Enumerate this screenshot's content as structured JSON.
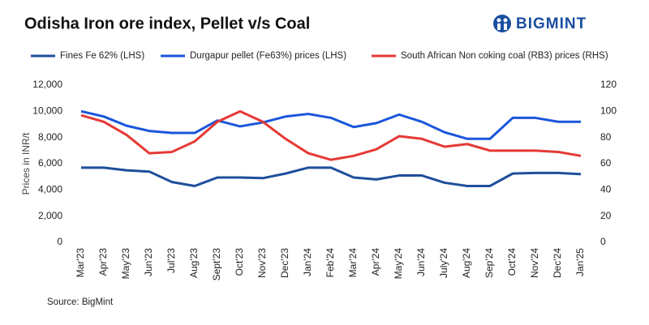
{
  "logo": "BIGMINT",
  "chart_data": {
    "type": "line",
    "title": "Odisha Iron ore index, Pellet v/s Coal",
    "ylabel": "Prices in INR/t",
    "source": "Source: BigMint",
    "categories": [
      "Mar'23",
      "Apr'23",
      "May'23",
      "Jun'23",
      "Jul'23",
      "Aug'23",
      "Sept'23",
      "Oct'23",
      "Nov'23",
      "Dec'23",
      "Jan'24",
      "Feb'24",
      "Mar'24",
      "Apr'24",
      "May'24",
      "Jun'24",
      "July'24",
      "Aug'24",
      "Sep'24",
      "Oct'24",
      "Nov'24",
      "Dec'24",
      "Jan'25"
    ],
    "series": [
      {
        "name": "Fines Fe 62% (LHS)",
        "color": "#1f4e9c",
        "values": [
          5700,
          5700,
          5500,
          5400,
          4600,
          4300,
          4950,
          4950,
          4900,
          5250,
          5700,
          5700,
          4950,
          4800,
          5100,
          5100,
          4550,
          4300,
          4300,
          5250,
          5300,
          5300,
          5200
        ]
      },
      {
        "name": "Durgapur pellet (Fe63%) prices (LHS)",
        "color": "#1a56db",
        "values": [
          10000,
          9600,
          8900,
          8500,
          8350,
          8350,
          9300,
          8850,
          9150,
          9600,
          9800,
          9500,
          8800,
          9100,
          9750,
          9200,
          8400,
          7900,
          7900,
          9500,
          9500,
          9200,
          9200
        ]
      },
      {
        "name": "South African Non coking coal (RB3) prices (RHS)",
        "color": "#e53935",
        "axis": "y2",
        "values": [
          97,
          92,
          82,
          68,
          69,
          77,
          92,
          100,
          92,
          79,
          68,
          63,
          66,
          71,
          81,
          79,
          73,
          75,
          70,
          70,
          70,
          69,
          66
        ]
      }
    ],
    "ylim": [
      0,
      12000
    ],
    "yticks": [
      0,
      {
        "value": 2000,
        "label": "2,000"
      },
      {
        "value": 4000,
        "label": "4,000"
      },
      {
        "value": 6000,
        "label": "6,000"
      },
      {
        "value": 8000,
        "label": "8,000"
      },
      {
        "value": 10000,
        "label": "10,000"
      },
      {
        "value": 12000,
        "label": "12,000"
      }
    ],
    "y2lim": [
      0,
      120
    ],
    "y2ticks": [
      0,
      20,
      40,
      60,
      80,
      100,
      120
    ],
    "grid": false,
    "legend": "top"
  }
}
